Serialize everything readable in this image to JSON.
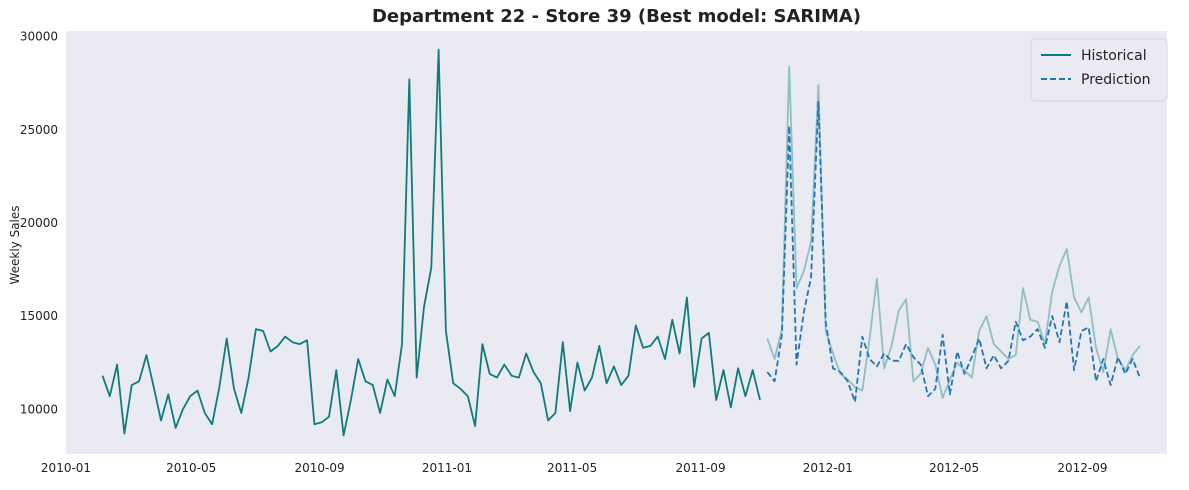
{
  "chart_data": {
    "type": "line",
    "title": "Department 22 - Store 39 (Best model: SARIMA)",
    "xlabel": "",
    "ylabel": "Weekly Sales",
    "xlim": [
      "2010-01-01",
      "2012-11-21"
    ],
    "ylim": [
      7600,
      30300
    ],
    "grid": false,
    "legend_position": "top-right",
    "x_ticks": [
      "2010-01",
      "2010-05",
      "2010-09",
      "2011-01",
      "2011-05",
      "2011-09",
      "2012-01",
      "2012-05",
      "2012-09"
    ],
    "y_ticks": [
      10000,
      15000,
      20000,
      25000,
      30000
    ],
    "series": [
      {
        "name": "Historical",
        "style": "solid",
        "color": "#0f7b7b",
        "x_start": "2010-02-05",
        "step_days": 7,
        "values": [
          11800,
          10700,
          12400,
          8700,
          11300,
          11500,
          12900,
          11200,
          9400,
          10800,
          9000,
          10000,
          10700,
          11000,
          9800,
          9200,
          11200,
          13800,
          11100,
          9800,
          11700,
          14300,
          14200,
          13100,
          13400,
          13900,
          13600,
          13500,
          13700,
          9200,
          9300,
          9600,
          12100,
          8600,
          10500,
          12700,
          11500,
          11300,
          9800,
          11600,
          10700,
          13500,
          27700,
          11700,
          15500,
          17600,
          29300,
          14200,
          11400,
          11100,
          10700,
          9100,
          13500,
          11900,
          11700,
          12400,
          11800,
          11700,
          13000,
          12000,
          11400,
          9400,
          9800,
          13600,
          9900,
          12500,
          11000,
          11700,
          13400,
          11400,
          12300,
          11300,
          11800,
          14500,
          13300,
          13400,
          13900,
          12700,
          14800,
          13000,
          16000,
          11200,
          13800,
          14100,
          10500,
          12100,
          10100,
          12200,
          10700,
          12100,
          10500
        ]
      },
      {
        "name": "",
        "style": "solid-light",
        "color": "#8fbfc1",
        "x_start": "2011-11-04",
        "step_days": 7,
        "values": [
          13800,
          12700,
          14300,
          28400,
          16500,
          17400,
          19000,
          27400,
          14200,
          13000,
          11900,
          11600,
          11200,
          11000,
          13800,
          17000,
          12200,
          13400,
          15300,
          15900,
          11500,
          11900,
          13300,
          12400,
          10600,
          11600,
          12500,
          12100,
          11700,
          14200,
          15000,
          13500,
          13100,
          12700,
          12900,
          16500,
          14800,
          14700,
          13500,
          16300,
          17700,
          18600,
          16000,
          15200,
          16000,
          13300,
          12000,
          14300,
          12700,
          12100,
          12900,
          13400
        ]
      },
      {
        "name": "Prediction",
        "style": "dashed",
        "color": "#1f77b4",
        "x_start": "2011-11-04",
        "step_days": 7,
        "values": [
          12000,
          11500,
          14000,
          25200,
          12400,
          15200,
          17100,
          26500,
          14700,
          12200,
          12000,
          11500,
          10400,
          13900,
          12700,
          12300,
          13000,
          12600,
          12600,
          13500,
          12800,
          12400,
          10700,
          11100,
          14000,
          10800,
          13100,
          11900,
          12800,
          13800,
          12200,
          12900,
          12200,
          12600,
          14700,
          13700,
          13900,
          14300,
          13300,
          15000,
          13600,
          15800,
          12100,
          14200,
          14400,
          11500,
          12700,
          11300,
          12800,
          11900,
          12700,
          11700
        ]
      }
    ]
  }
}
